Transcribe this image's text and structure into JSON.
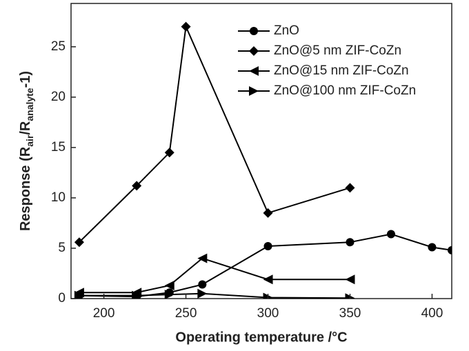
{
  "chart_data": {
    "type": "line",
    "xlabel": "Operating temperature /°C",
    "ylabel_parts": [
      "Response (R",
      "air",
      "/R",
      "analyte",
      "-1)"
    ],
    "xlim": [
      180,
      412
    ],
    "ylim": [
      0,
      29.3
    ],
    "xticks": [
      200,
      250,
      300,
      350,
      400
    ],
    "yticks": [
      0,
      5,
      10,
      15,
      20,
      25
    ],
    "legend": "upper right",
    "series": [
      {
        "name": "ZnO",
        "color": "#000000",
        "marker": "circle",
        "x": [
          185,
          220,
          240,
          260,
          300,
          350,
          375,
          400,
          412
        ],
        "values": [
          0.3,
          0.2,
          0.6,
          1.4,
          5.2,
          5.6,
          6.4,
          5.1,
          4.8
        ]
      },
      {
        "name": "ZnO@5 nm ZIF-CoZn",
        "color": "#000000",
        "marker": "diamond",
        "x": [
          185,
          220,
          240,
          250,
          300,
          350
        ],
        "values": [
          5.6,
          11.2,
          14.5,
          27.0,
          8.5,
          11.0
        ]
      },
      {
        "name": "ZnO@15 nm ZIF-CoZn",
        "color": "#000000",
        "marker": "triangle-left",
        "x": [
          185,
          220,
          240,
          260,
          300,
          350
        ],
        "values": [
          0.6,
          0.6,
          1.3,
          4.0,
          1.9,
          1.9
        ]
      },
      {
        "name": "ZnO@100 nm ZIF-CoZn",
        "color": "#000000",
        "marker": "triangle-right",
        "x": [
          185,
          220,
          240,
          260,
          300,
          350
        ],
        "values": [
          0.3,
          0.3,
          0.4,
          0.5,
          0.1,
          0.05
        ]
      }
    ]
  }
}
